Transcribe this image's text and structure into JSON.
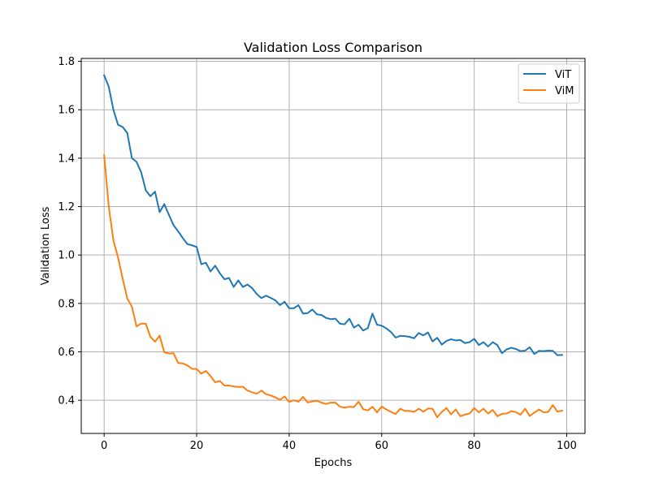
{
  "chart_data": {
    "type": "line",
    "title": "Validation Loss Comparison",
    "xlabel": "Epochs",
    "ylabel": "Validation Loss",
    "xlim": [
      -4.95,
      103.95
    ],
    "ylim": [
      0.263,
      1.812
    ],
    "xticks": [
      0,
      20,
      40,
      60,
      80,
      100
    ],
    "yticks": [
      0.4,
      0.6,
      0.8,
      1.0,
      1.2,
      1.4,
      1.6,
      1.8
    ],
    "xtick_labels": [
      "0",
      "20",
      "40",
      "60",
      "80",
      "100"
    ],
    "ytick_labels": [
      "0.4",
      "0.6",
      "0.8",
      "1.0",
      "1.2",
      "1.4",
      "1.6",
      "1.8"
    ],
    "grid": true,
    "legend_position": "upper right",
    "x": [
      0,
      1,
      2,
      3,
      4,
      5,
      6,
      7,
      8,
      9,
      10,
      11,
      12,
      13,
      14,
      15,
      16,
      17,
      18,
      19,
      20,
      21,
      22,
      23,
      24,
      25,
      26,
      27,
      28,
      29,
      30,
      31,
      32,
      33,
      34,
      35,
      36,
      37,
      38,
      39,
      40,
      41,
      42,
      43,
      44,
      45,
      46,
      47,
      48,
      49,
      50,
      51,
      52,
      53,
      54,
      55,
      56,
      57,
      58,
      59,
      60,
      61,
      62,
      63,
      64,
      65,
      66,
      67,
      68,
      69,
      70,
      71,
      72,
      73,
      74,
      75,
      76,
      77,
      78,
      79,
      80,
      81,
      82,
      83,
      84,
      85,
      86,
      87,
      88,
      89,
      90,
      91,
      92,
      93,
      94,
      95,
      96,
      97,
      98,
      99
    ],
    "series": [
      {
        "name": "ViT",
        "color": "#1f77b4",
        "values": [
          1.742,
          1.695,
          1.6,
          1.538,
          1.529,
          1.504,
          1.4,
          1.385,
          1.342,
          1.267,
          1.243,
          1.262,
          1.177,
          1.21,
          1.166,
          1.123,
          1.098,
          1.07,
          1.045,
          1.04,
          1.033,
          0.962,
          0.968,
          0.932,
          0.956,
          0.925,
          0.9,
          0.905,
          0.868,
          0.895,
          0.868,
          0.878,
          0.863,
          0.839,
          0.822,
          0.832,
          0.823,
          0.813,
          0.793,
          0.807,
          0.78,
          0.78,
          0.793,
          0.758,
          0.76,
          0.775,
          0.755,
          0.752,
          0.74,
          0.735,
          0.737,
          0.716,
          0.714,
          0.737,
          0.7,
          0.712,
          0.688,
          0.698,
          0.758,
          0.712,
          0.708,
          0.697,
          0.682,
          0.659,
          0.666,
          0.665,
          0.662,
          0.656,
          0.678,
          0.668,
          0.68,
          0.643,
          0.658,
          0.63,
          0.645,
          0.652,
          0.647,
          0.649,
          0.636,
          0.64,
          0.654,
          0.628,
          0.64,
          0.622,
          0.64,
          0.628,
          0.594,
          0.61,
          0.617,
          0.612,
          0.603,
          0.605,
          0.619,
          0.591,
          0.604,
          0.603,
          0.605,
          0.604,
          0.586,
          0.587
        ]
      },
      {
        "name": "ViM",
        "color": "#ff7f0e",
        "values": [
          1.413,
          1.2,
          1.06,
          0.99,
          0.903,
          0.82,
          0.787,
          0.705,
          0.717,
          0.716,
          0.662,
          0.642,
          0.667,
          0.598,
          0.593,
          0.594,
          0.554,
          0.552,
          0.544,
          0.53,
          0.529,
          0.51,
          0.521,
          0.5,
          0.474,
          0.48,
          0.461,
          0.461,
          0.457,
          0.455,
          0.456,
          0.44,
          0.433,
          0.427,
          0.44,
          0.425,
          0.42,
          0.412,
          0.402,
          0.416,
          0.393,
          0.4,
          0.394,
          0.414,
          0.391,
          0.395,
          0.398,
          0.39,
          0.385,
          0.39,
          0.39,
          0.373,
          0.37,
          0.373,
          0.372,
          0.394,
          0.363,
          0.358,
          0.373,
          0.35,
          0.374,
          0.362,
          0.352,
          0.343,
          0.365,
          0.356,
          0.356,
          0.352,
          0.365,
          0.353,
          0.366,
          0.365,
          0.33,
          0.352,
          0.368,
          0.342,
          0.362,
          0.334,
          0.341,
          0.345,
          0.368,
          0.35,
          0.365,
          0.345,
          0.36,
          0.334,
          0.344,
          0.345,
          0.355,
          0.351,
          0.34,
          0.365,
          0.335,
          0.349,
          0.362,
          0.35,
          0.352,
          0.38,
          0.353,
          0.357
        ]
      }
    ]
  }
}
